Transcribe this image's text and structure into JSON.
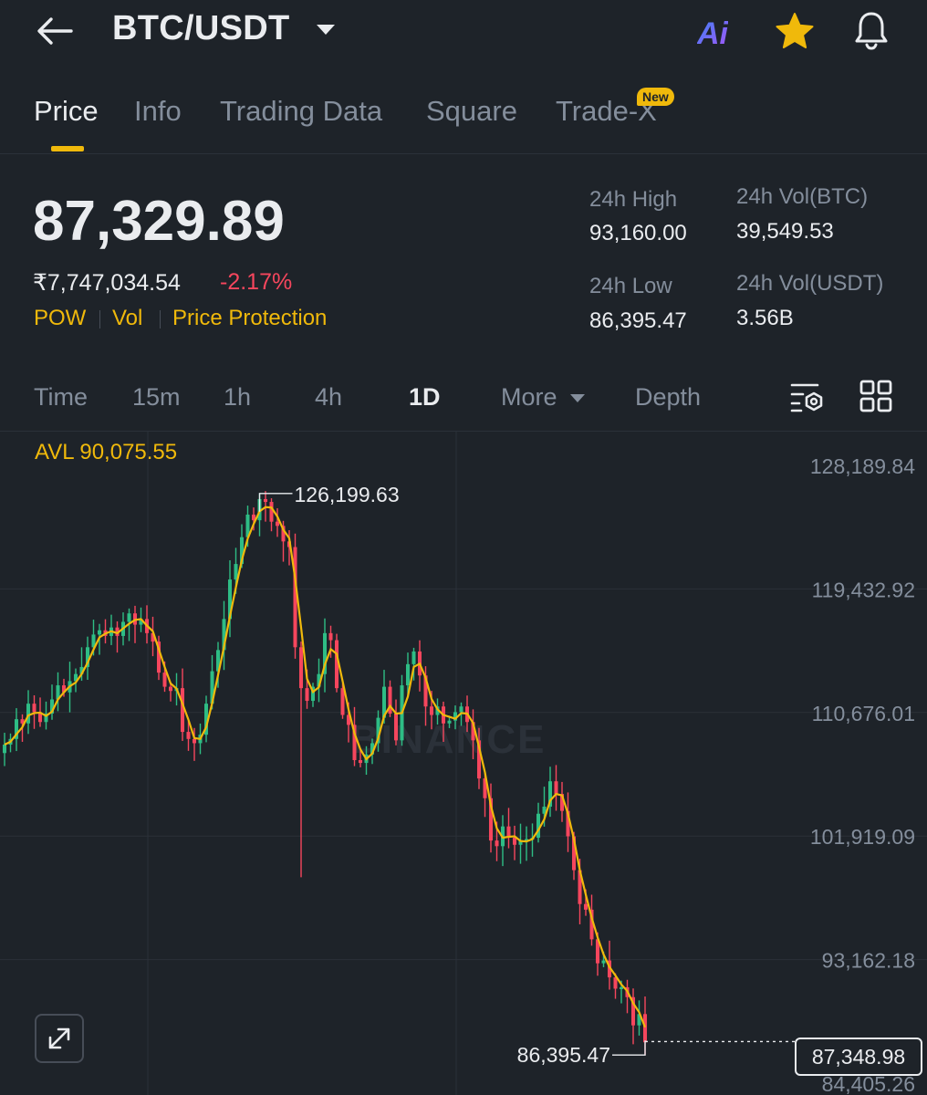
{
  "header": {
    "title": "BTC/USDT",
    "ai_label": "Ai",
    "icons": [
      "back-arrow-icon",
      "caret-down-icon",
      "ai-icon",
      "star-icon",
      "bell-icon"
    ]
  },
  "tabs": [
    {
      "label": "Price",
      "active": true
    },
    {
      "label": "Info"
    },
    {
      "label": "Trading Data"
    },
    {
      "label": "Square"
    },
    {
      "label": "Trade-X",
      "badge": "New"
    }
  ],
  "ticker": {
    "last_price": "87,329.89",
    "fiat_price": "₹7,747,034.54",
    "change_pct": "-2.17%",
    "tags": [
      "POW",
      "Vol",
      "Price Protection"
    ],
    "high_label": "24h High",
    "high_value": "93,160.00",
    "low_label": "24h Low",
    "low_value": "86,395.47",
    "vol_base_label": "24h Vol(BTC)",
    "vol_base_value": "39,549.53",
    "vol_quote_label": "24h Vol(USDT)",
    "vol_quote_value": "3.56B"
  },
  "intervals": {
    "items": [
      "Time",
      "15m",
      "1h",
      "4h",
      "1D"
    ],
    "active": "1D",
    "more_label": "More",
    "depth_label": "Depth"
  },
  "colors": {
    "up": "#2ebd85",
    "down": "#f6465d",
    "accent": "#f0b90b",
    "background": "#1e2329"
  },
  "chart_data": {
    "type": "candlestick",
    "avl_label": "AVL 90,075.55",
    "y_ticks": [
      "128,189.84",
      "119,432.92",
      "110,676.01",
      "101,919.09",
      "93,162.18",
      "84,405.26"
    ],
    "y_tick_values": [
      128189.84,
      119432.92,
      110676.01,
      101919.09,
      93162.18,
      84405.26
    ],
    "high_marker": {
      "label": "126,199.63",
      "value": 126199.63
    },
    "low_marker": {
      "label": "86,395.47",
      "value": 86395.47
    },
    "current_price": {
      "label": "87,348.98",
      "value": 87348.98
    },
    "watermark": "BINANCE",
    "closes": [
      108400,
      108800,
      110200,
      109900,
      111300,
      110700,
      110000,
      110600,
      111600,
      112600,
      112100,
      112900,
      113400,
      113900,
      115300,
      116200,
      116500,
      116100,
      116700,
      116100,
      117100,
      117700,
      116900,
      117300,
      116300,
      115700,
      113500,
      112500,
      112200,
      112400,
      109300,
      108800,
      108500,
      109100,
      111300,
      113600,
      115100,
      117300,
      120100,
      121200,
      123100,
      124700,
      124300,
      125800,
      125600,
      124200,
      123900,
      122800,
      122400,
      115300,
      112400,
      111500,
      112500,
      113400,
      116300,
      115800,
      112400,
      110500,
      109800,
      107300,
      107100,
      107700,
      108500,
      110300,
      112500,
      110600,
      108700,
      112600,
      114100,
      115000,
      113300,
      111100,
      110500,
      111100,
      109900,
      110100,
      110700,
      111100,
      110000,
      108700,
      106000,
      104600,
      101600,
      101200,
      102600,
      101800,
      101300,
      101600,
      101700,
      101800,
      103500,
      104000,
      105800,
      104900,
      103700,
      101900,
      99500,
      97100,
      96700,
      94600,
      92900,
      93100,
      91900,
      91100,
      91200,
      90500,
      88500,
      89300,
      87300
    ]
  }
}
